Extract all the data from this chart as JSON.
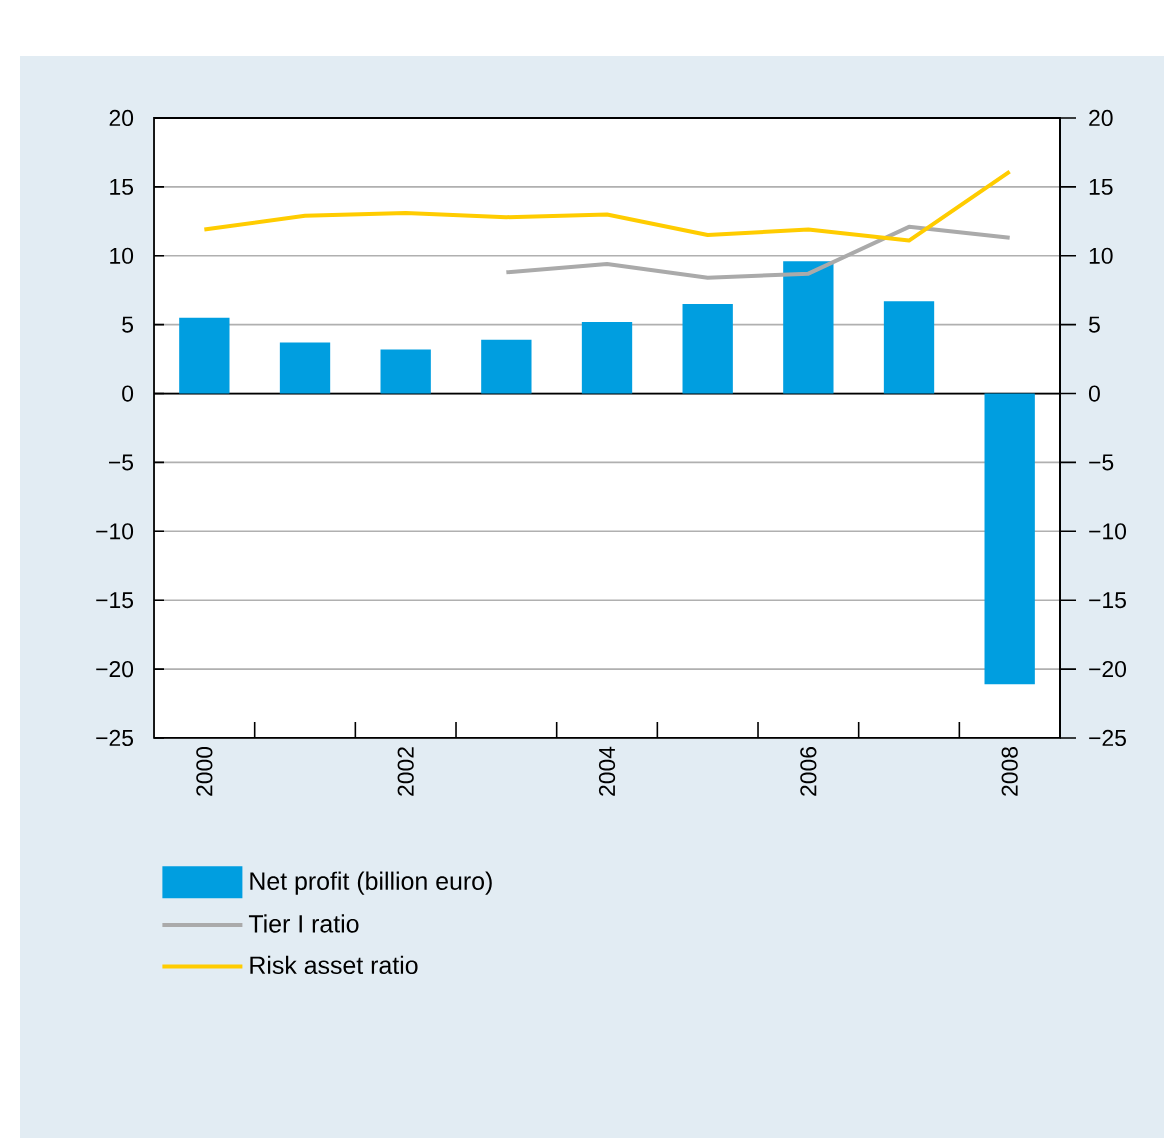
{
  "chart_data": {
    "type": "bar",
    "categories": [
      "2000",
      null,
      "2002",
      null,
      "2004",
      null,
      "2006",
      null,
      "2008"
    ],
    "series": [
      {
        "name": "Net profit (billion euro)",
        "color": "#009ee0",
        "values": [
          5.5,
          3.7,
          3.2,
          3.9,
          5.2,
          6.5,
          9.6,
          6.7,
          -21.1
        ]
      },
      {
        "name": "Tier I ratio",
        "type": "line",
        "color": "#aaaaaa",
        "values": [
          null,
          null,
          null,
          8.8,
          9.4,
          8.4,
          8.7,
          12.1,
          11.3
        ]
      },
      {
        "name": "Risk asset ratio",
        "type": "line",
        "color": "#ffcc00",
        "values": [
          11.9,
          12.9,
          13.1,
          12.8,
          13.0,
          11.5,
          11.9,
          11.1,
          16.1
        ]
      }
    ],
    "ylim": [
      -25,
      20
    ],
    "yticks": [
      {
        "value": -25,
        "label": "−25"
      },
      {
        "value": -20,
        "label": "−20"
      },
      {
        "value": -15,
        "label": "−15"
      },
      {
        "value": -10,
        "label": "−10"
      },
      {
        "value": -5,
        "label": "−5"
      },
      0,
      5,
      10,
      15,
      20
    ],
    "y2lim": [
      -25,
      20
    ],
    "y2ticks": [
      {
        "value": -25,
        "label": "−25"
      },
      {
        "value": -20,
        "label": "−20"
      },
      {
        "value": -15,
        "label": "−15"
      },
      {
        "value": -10,
        "label": "−10"
      },
      {
        "value": -5,
        "label": "−5"
      },
      0,
      5,
      10,
      15,
      20
    ],
    "grid": "y",
    "legend": "bottom"
  }
}
